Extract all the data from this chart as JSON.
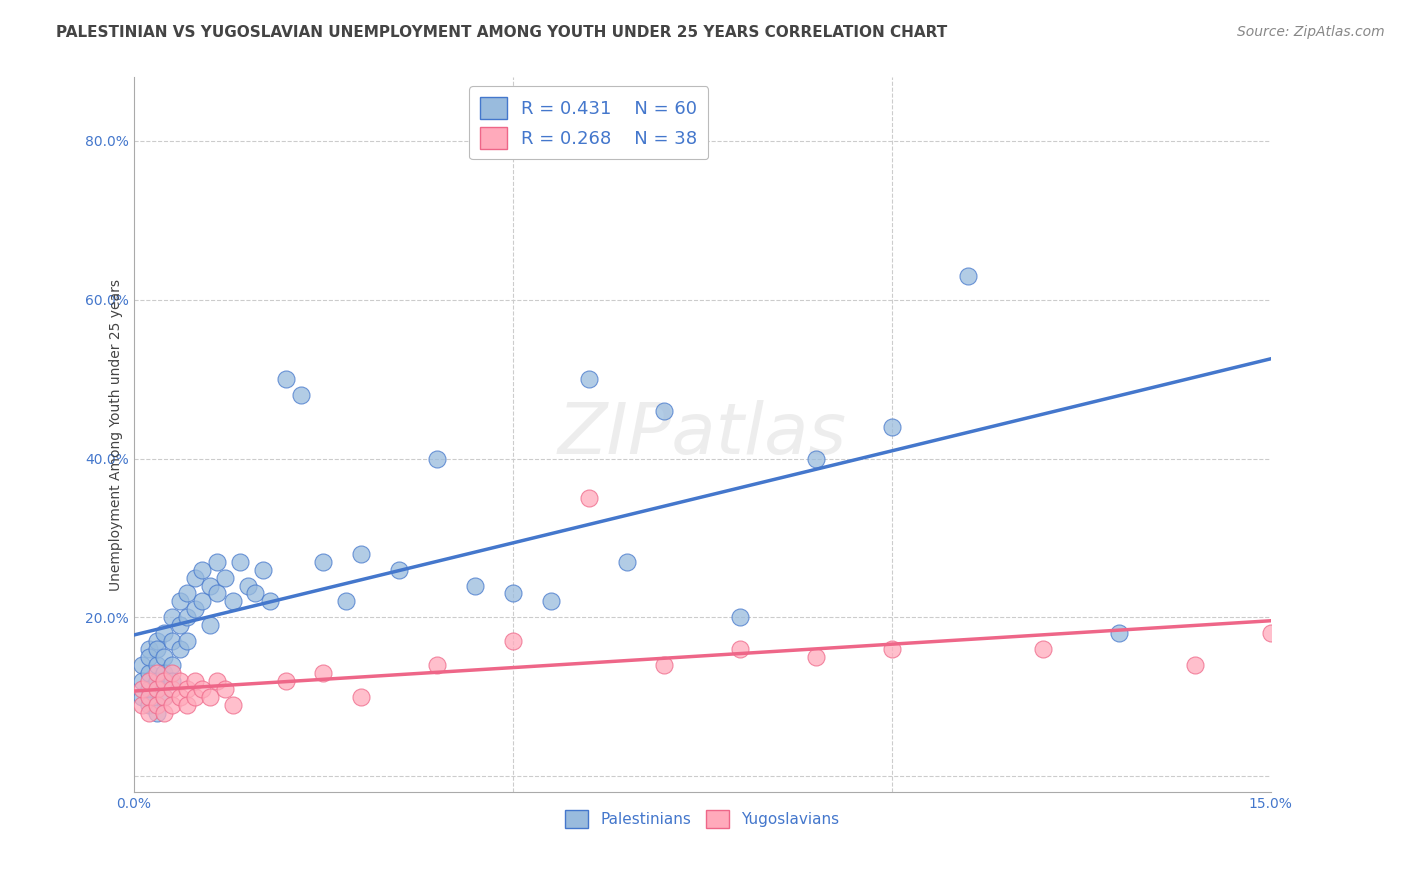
{
  "title": "PALESTINIAN VS YUGOSLAVIAN UNEMPLOYMENT AMONG YOUTH UNDER 25 YEARS CORRELATION CHART",
  "source": "Source: ZipAtlas.com",
  "ylabel": "Unemployment Among Youth under 25 years",
  "xlim": [
    0.0,
    0.15
  ],
  "ylim": [
    -0.02,
    0.88
  ],
  "x_tick_positions": [
    0.0,
    0.05,
    0.1,
    0.15
  ],
  "x_tick_labels": [
    "0.0%",
    "",
    "",
    "15.0%"
  ],
  "y_tick_positions": [
    0.0,
    0.2,
    0.4,
    0.6,
    0.8
  ],
  "y_tick_labels": [
    "",
    "20.0%",
    "40.0%",
    "60.0%",
    "80.0%"
  ],
  "legend1_R": "0.431",
  "legend1_N": "60",
  "legend2_R": "0.268",
  "legend2_N": "38",
  "blue_color": "#99BBDD",
  "pink_color": "#FFAABB",
  "line_blue": "#4477CC",
  "line_pink": "#EE6688",
  "label_color": "#4477CC",
  "background": "#FFFFFF",
  "grid_color": "#CCCCCC",
  "title_color": "#444444",
  "source_color": "#888888",
  "pal_x": [
    0.001,
    0.001,
    0.001,
    0.002,
    0.002,
    0.002,
    0.002,
    0.002,
    0.003,
    0.003,
    0.003,
    0.003,
    0.003,
    0.004,
    0.004,
    0.004,
    0.004,
    0.005,
    0.005,
    0.005,
    0.005,
    0.006,
    0.006,
    0.006,
    0.007,
    0.007,
    0.007,
    0.008,
    0.008,
    0.009,
    0.009,
    0.01,
    0.01,
    0.011,
    0.011,
    0.012,
    0.013,
    0.014,
    0.015,
    0.016,
    0.017,
    0.018,
    0.02,
    0.022,
    0.025,
    0.028,
    0.03,
    0.035,
    0.04,
    0.045,
    0.05,
    0.055,
    0.06,
    0.065,
    0.07,
    0.08,
    0.09,
    0.1,
    0.11,
    0.13
  ],
  "pal_y": [
    0.14,
    0.12,
    0.1,
    0.16,
    0.13,
    0.11,
    0.15,
    0.09,
    0.17,
    0.14,
    0.12,
    0.16,
    0.08,
    0.18,
    0.15,
    0.13,
    0.1,
    0.2,
    0.17,
    0.14,
    0.12,
    0.22,
    0.19,
    0.16,
    0.23,
    0.2,
    0.17,
    0.25,
    0.21,
    0.26,
    0.22,
    0.24,
    0.19,
    0.27,
    0.23,
    0.25,
    0.22,
    0.27,
    0.24,
    0.23,
    0.26,
    0.22,
    0.5,
    0.48,
    0.27,
    0.22,
    0.28,
    0.26,
    0.4,
    0.24,
    0.23,
    0.22,
    0.5,
    0.27,
    0.46,
    0.2,
    0.4,
    0.44,
    0.63,
    0.18
  ],
  "yug_x": [
    0.001,
    0.001,
    0.002,
    0.002,
    0.002,
    0.003,
    0.003,
    0.003,
    0.004,
    0.004,
    0.004,
    0.005,
    0.005,
    0.005,
    0.006,
    0.006,
    0.007,
    0.007,
    0.008,
    0.008,
    0.009,
    0.01,
    0.011,
    0.012,
    0.013,
    0.02,
    0.025,
    0.03,
    0.04,
    0.05,
    0.06,
    0.07,
    0.08,
    0.09,
    0.1,
    0.12,
    0.14,
    0.15
  ],
  "yug_y": [
    0.09,
    0.11,
    0.1,
    0.08,
    0.12,
    0.11,
    0.09,
    0.13,
    0.1,
    0.08,
    0.12,
    0.11,
    0.09,
    0.13,
    0.1,
    0.12,
    0.11,
    0.09,
    0.1,
    0.12,
    0.11,
    0.1,
    0.12,
    0.11,
    0.09,
    0.12,
    0.13,
    0.1,
    0.14,
    0.17,
    0.35,
    0.14,
    0.16,
    0.15,
    0.16,
    0.16,
    0.14,
    0.18
  ],
  "title_fontsize": 11,
  "axis_label_fontsize": 10,
  "tick_fontsize": 10,
  "legend_fontsize": 13,
  "source_fontsize": 10
}
